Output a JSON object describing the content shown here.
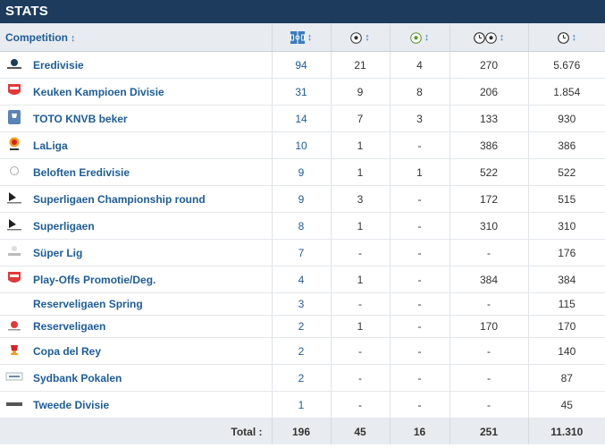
{
  "header": {
    "title": "STATS"
  },
  "columns": {
    "competition_label": "Competition",
    "sort_glyph": "↕",
    "apps_icon": "squad-pitch-icon",
    "goals_icon": "ball-icon",
    "assists_icon": "ball-assist-icon",
    "minutes_per_goal_icon": "clock-ball-icon",
    "minutes_icon": "clock-icon"
  },
  "rows": [
    {
      "competition": "Eredivisie",
      "logo": "eredivisie-logo",
      "apps": "94",
      "goals": "21",
      "assists": "4",
      "minutes_per_goal": "270",
      "minutes": "5.676"
    },
    {
      "competition": "Keuken Kampioen Divisie",
      "logo": "kkd-logo",
      "apps": "31",
      "goals": "9",
      "assists": "8",
      "minutes_per_goal": "206",
      "minutes": "1.854"
    },
    {
      "competition": "TOTO KNVB beker",
      "logo": "knvb-beker-logo",
      "apps": "14",
      "goals": "7",
      "assists": "3",
      "minutes_per_goal": "133",
      "minutes": "930"
    },
    {
      "competition": "LaLiga",
      "logo": "laliga-logo",
      "apps": "10",
      "goals": "1",
      "assists": "-",
      "minutes_per_goal": "386",
      "minutes": "386"
    },
    {
      "competition": "Beloften Eredivisie",
      "logo": "beloften-logo",
      "apps": "9",
      "goals": "1",
      "assists": "1",
      "minutes_per_goal": "522",
      "minutes": "522"
    },
    {
      "competition": "Superligaen Championship round",
      "logo": "superliga-logo",
      "apps": "9",
      "goals": "3",
      "assists": "-",
      "minutes_per_goal": "172",
      "minutes": "515"
    },
    {
      "competition": "Superligaen",
      "logo": "superliga-logo",
      "apps": "8",
      "goals": "1",
      "assists": "-",
      "minutes_per_goal": "310",
      "minutes": "310"
    },
    {
      "competition": "Süper Lig",
      "logo": "super-lig-logo",
      "apps": "7",
      "goals": "-",
      "assists": "-",
      "minutes_per_goal": "-",
      "minutes": "176"
    },
    {
      "competition": "Play-Offs Promotie/Deg.",
      "logo": "kkd-logo",
      "apps": "4",
      "goals": "1",
      "assists": "-",
      "minutes_per_goal": "384",
      "minutes": "384"
    },
    {
      "competition": "Reserveligaen Spring",
      "logo": "",
      "apps": "3",
      "goals": "-",
      "assists": "-",
      "minutes_per_goal": "-",
      "minutes": "115"
    },
    {
      "competition": "Reserveligaen",
      "logo": "reserveligaen-logo",
      "apps": "2",
      "goals": "1",
      "assists": "-",
      "minutes_per_goal": "170",
      "minutes": "170"
    },
    {
      "competition": "Copa del Rey",
      "logo": "copa-del-rey-logo",
      "apps": "2",
      "goals": "-",
      "assists": "-",
      "minutes_per_goal": "-",
      "minutes": "140"
    },
    {
      "competition": "Sydbank Pokalen",
      "logo": "sydbank-logo",
      "apps": "2",
      "goals": "-",
      "assists": "-",
      "minutes_per_goal": "-",
      "minutes": "87"
    },
    {
      "competition": "Tweede Divisie",
      "logo": "tweede-divisie-logo",
      "apps": "1",
      "goals": "-",
      "assists": "-",
      "minutes_per_goal": "-",
      "minutes": "45"
    }
  ],
  "totals": {
    "label": "Total :",
    "apps": "196",
    "goals": "45",
    "assists": "16",
    "minutes_per_goal": "251",
    "minutes": "11.310"
  },
  "colors": {
    "header_bg": "#1d3b5c",
    "link_blue": "#1d5c9a",
    "head_bg": "#e8ecf0"
  }
}
